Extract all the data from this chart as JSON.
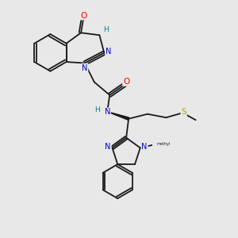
{
  "background_color": "#e8e8e8",
  "bond_color": "#1a1a1a",
  "atom_colors": {
    "O": "#ff0000",
    "N": "#0000cc",
    "S": "#aaaa00",
    "C": "#1a1a1a",
    "H": "#008080"
  },
  "figsize": [
    3.0,
    3.0
  ],
  "dpi": 100,
  "lw": 1.3,
  "fs": 7.0
}
